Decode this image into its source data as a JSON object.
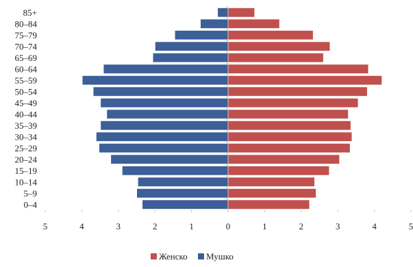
{
  "colors": {
    "female": "#c0504d",
    "male": "#3d5f97",
    "axis": "#c8c8c8"
  },
  "chart_data": {
    "type": "bar",
    "orientation": "horizontal",
    "subtype": "population-pyramid",
    "title": "",
    "xlabel": "",
    "ylabel": "",
    "categories": [
      "85+",
      "80–84",
      "75–79",
      "70–74",
      "65–69",
      "60–64",
      "55–59",
      "50–54",
      "45–49",
      "40–44",
      "35–39",
      "30–34",
      "25–29",
      "20–24",
      "15–19",
      "10–14",
      "5–9",
      "0–4"
    ],
    "series": [
      {
        "name": "Женско",
        "side": "right",
        "values": [
          0.72,
          1.4,
          2.32,
          2.78,
          2.6,
          3.83,
          4.2,
          3.8,
          3.55,
          3.28,
          3.35,
          3.38,
          3.33,
          3.04,
          2.76,
          2.36,
          2.4,
          2.22
        ]
      },
      {
        "name": "Мушко",
        "side": "left",
        "values": [
          0.28,
          0.75,
          1.45,
          1.99,
          2.05,
          3.4,
          3.98,
          3.68,
          3.48,
          3.31,
          3.48,
          3.6,
          3.52,
          3.2,
          2.89,
          2.46,
          2.49,
          2.34
        ]
      }
    ],
    "xlim": [
      -5,
      5
    ],
    "x_ticks": [
      {
        "value": -5,
        "label": "5"
      },
      {
        "value": -4,
        "label": "4"
      },
      {
        "value": -3,
        "label": "3"
      },
      {
        "value": -2,
        "label": "2"
      },
      {
        "value": -1,
        "label": "1"
      },
      {
        "value": 0,
        "label": "0"
      },
      {
        "value": 1,
        "label": "1"
      },
      {
        "value": 2,
        "label": "2"
      },
      {
        "value": 3,
        "label": "3"
      },
      {
        "value": 4,
        "label": "4"
      },
      {
        "value": 5,
        "label": "5"
      }
    ],
    "grid": false,
    "legend": {
      "position": "bottom",
      "entries": [
        "Женско",
        "Мушко"
      ]
    }
  }
}
